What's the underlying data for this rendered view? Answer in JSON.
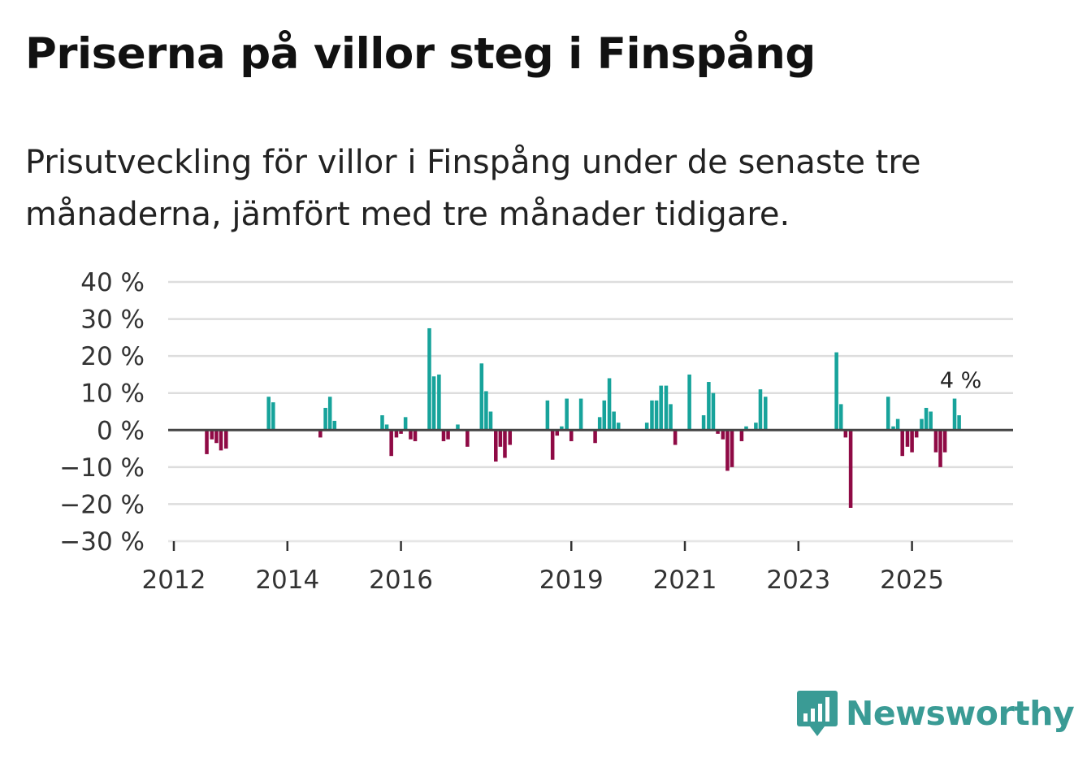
{
  "header": {
    "title": "Priserna på villor steg i Finspång",
    "subtitle": "Prisutveckling för villor i Finspång under de senaste tre månaderna, jämfört med tre månader tidigare."
  },
  "colors": {
    "positive": "#17a39b",
    "negative": "#8f0a45",
    "grid": "#dddddd",
    "zero": "#444444"
  },
  "brand": {
    "name": "Newsworthy",
    "icon": "bar-chart-speech-bubble-icon",
    "color": "#3a9b95"
  },
  "chart_data": {
    "type": "bar",
    "title": "Priserna på villor steg i Finspång",
    "xlabel": "",
    "ylabel": "",
    "ylim": [
      -30,
      40
    ],
    "xlim": [
      2011.9,
      2026.78
    ],
    "yticks": [
      -30,
      -20,
      -10,
      0,
      10,
      20,
      30,
      40
    ],
    "ytick_labels": [
      "−30 %",
      "−20 %",
      "−10 %",
      "0 %",
      "10 %",
      "20 %",
      "30 %",
      "40 %"
    ],
    "xticks": [
      2012,
      2014,
      2016,
      2019,
      2021,
      2023,
      2025
    ],
    "xtick_labels": [
      "2012",
      "2014",
      "2016",
      "2019",
      "2021",
      "2023",
      "2025"
    ],
    "annotation": {
      "text": "4 %",
      "x": 2025.83,
      "value": 4
    },
    "series": [
      {
        "name": "Prisutveckling",
        "points": [
          {
            "x": 2012.58,
            "v": -6.5
          },
          {
            "x": 2012.67,
            "v": -2.5
          },
          {
            "x": 2012.75,
            "v": -3.5
          },
          {
            "x": 2012.83,
            "v": -5.5
          },
          {
            "x": 2012.92,
            "v": -5
          },
          {
            "x": 2013.67,
            "v": 9
          },
          {
            "x": 2013.75,
            "v": 7.5
          },
          {
            "x": 2014.58,
            "v": -2
          },
          {
            "x": 2014.67,
            "v": 6
          },
          {
            "x": 2014.75,
            "v": 9
          },
          {
            "x": 2014.83,
            "v": 2.5
          },
          {
            "x": 2015.67,
            "v": 4
          },
          {
            "x": 2015.75,
            "v": 1.5
          },
          {
            "x": 2015.83,
            "v": -7
          },
          {
            "x": 2015.92,
            "v": -2
          },
          {
            "x": 2016.0,
            "v": -1
          },
          {
            "x": 2016.08,
            "v": 3.5
          },
          {
            "x": 2016.17,
            "v": -2.5
          },
          {
            "x": 2016.25,
            "v": -3
          },
          {
            "x": 2016.5,
            "v": 27.5
          },
          {
            "x": 2016.58,
            "v": 14.5
          },
          {
            "x": 2016.67,
            "v": 15
          },
          {
            "x": 2016.75,
            "v": -3
          },
          {
            "x": 2016.83,
            "v": -2.5
          },
          {
            "x": 2017.0,
            "v": 1.5
          },
          {
            "x": 2017.17,
            "v": -4.5
          },
          {
            "x": 2017.42,
            "v": 18
          },
          {
            "x": 2017.5,
            "v": 10.5
          },
          {
            "x": 2017.58,
            "v": 5
          },
          {
            "x": 2017.67,
            "v": -8.5
          },
          {
            "x": 2017.75,
            "v": -4.5
          },
          {
            "x": 2017.83,
            "v": -7.5
          },
          {
            "x": 2017.92,
            "v": -4
          },
          {
            "x": 2018.58,
            "v": 8
          },
          {
            "x": 2018.67,
            "v": -8
          },
          {
            "x": 2018.75,
            "v": -1.5
          },
          {
            "x": 2018.83,
            "v": 1
          },
          {
            "x": 2018.92,
            "v": 8.5
          },
          {
            "x": 2019.0,
            "v": -3
          },
          {
            "x": 2019.17,
            "v": 8.5
          },
          {
            "x": 2019.42,
            "v": -3.5
          },
          {
            "x": 2019.5,
            "v": 3.5
          },
          {
            "x": 2019.58,
            "v": 8
          },
          {
            "x": 2019.67,
            "v": 14
          },
          {
            "x": 2019.75,
            "v": 5
          },
          {
            "x": 2019.83,
            "v": 2
          },
          {
            "x": 2020.33,
            "v": 2
          },
          {
            "x": 2020.42,
            "v": 8
          },
          {
            "x": 2020.5,
            "v": 8
          },
          {
            "x": 2020.58,
            "v": 12
          },
          {
            "x": 2020.67,
            "v": 12
          },
          {
            "x": 2020.75,
            "v": 7
          },
          {
            "x": 2020.83,
            "v": -4
          },
          {
            "x": 2021.08,
            "v": 15
          },
          {
            "x": 2021.33,
            "v": 4
          },
          {
            "x": 2021.42,
            "v": 13
          },
          {
            "x": 2021.5,
            "v": 10
          },
          {
            "x": 2021.58,
            "v": -1
          },
          {
            "x": 2021.67,
            "v": -2.5
          },
          {
            "x": 2021.75,
            "v": -11
          },
          {
            "x": 2021.83,
            "v": -10
          },
          {
            "x": 2022.0,
            "v": -3
          },
          {
            "x": 2022.08,
            "v": 1
          },
          {
            "x": 2022.25,
            "v": 2
          },
          {
            "x": 2022.33,
            "v": 11
          },
          {
            "x": 2022.42,
            "v": 9
          },
          {
            "x": 2023.67,
            "v": 21
          },
          {
            "x": 2023.75,
            "v": 7
          },
          {
            "x": 2023.83,
            "v": -2
          },
          {
            "x": 2023.92,
            "v": -21
          },
          {
            "x": 2024.58,
            "v": 9
          },
          {
            "x": 2024.67,
            "v": 1
          },
          {
            "x": 2024.75,
            "v": 3
          },
          {
            "x": 2024.83,
            "v": -7
          },
          {
            "x": 2024.92,
            "v": -4.5
          },
          {
            "x": 2025.0,
            "v": -6
          },
          {
            "x": 2025.08,
            "v": -2
          },
          {
            "x": 2025.17,
            "v": 3
          },
          {
            "x": 2025.25,
            "v": 6
          },
          {
            "x": 2025.33,
            "v": 5
          },
          {
            "x": 2025.42,
            "v": -6
          },
          {
            "x": 2025.5,
            "v": -10
          },
          {
            "x": 2025.58,
            "v": -6
          },
          {
            "x": 2025.75,
            "v": 8.5
          },
          {
            "x": 2025.83,
            "v": 4
          }
        ]
      }
    ]
  }
}
